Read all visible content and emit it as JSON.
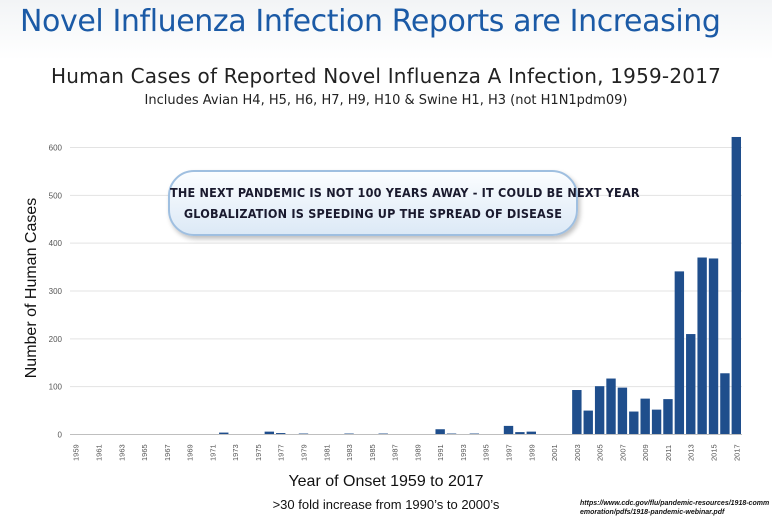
{
  "slide": {
    "title": "Novel Influenza Infection Reports are Increasing",
    "callout_line1": "The next pandemic is not 100 years away - it could be next year",
    "callout_line2": "Globalization is speeding up the spread of disease",
    "note": ">30 fold increase from 1990’s to 2000’s",
    "source": "https://www.cdc.gov/flu/pandemic-resources/1918-commemoration/pdfs/1918-pandemic-webinar.pdf",
    "colors": {
      "title": "#1b5aa6",
      "bar": "#1f4e8c"
    }
  },
  "chart_data": {
    "type": "bar",
    "title": "Human Cases of Reported Novel Influenza A Infection, 1959-2017",
    "subtitle": "Includes Avian H4, H5, H6, H7, H9, H10 & Swine H1, H3 (not H1N1pdm09)",
    "xlabel": "Year of Onset 1959 to 2017",
    "ylabel": "Number of Human Cases",
    "ylim": [
      0,
      650
    ],
    "yticks": [
      0,
      100,
      200,
      300,
      400,
      500,
      600
    ],
    "grid": true,
    "x": [
      1959,
      1960,
      1961,
      1962,
      1963,
      1964,
      1965,
      1966,
      1967,
      1968,
      1969,
      1970,
      1971,
      1972,
      1973,
      1974,
      1975,
      1976,
      1977,
      1978,
      1979,
      1980,
      1981,
      1982,
      1983,
      1984,
      1985,
      1986,
      1987,
      1988,
      1989,
      1990,
      1991,
      1992,
      1993,
      1994,
      1995,
      1996,
      1997,
      1998,
      1999,
      2000,
      2001,
      2002,
      2003,
      2004,
      2005,
      2006,
      2007,
      2008,
      2009,
      2010,
      2011,
      2012,
      2013,
      2014,
      2015,
      2016,
      2017
    ],
    "xtick_labels": [
      "1959",
      "1961",
      "1963",
      "1965",
      "1967",
      "1969",
      "1971",
      "1973",
      "1975",
      "1977",
      "1979",
      "1981",
      "1983",
      "1985",
      "1987",
      "1989",
      "1991",
      "1993",
      "1995",
      "1997",
      "1999",
      "2001",
      "2003",
      "2005",
      "2007",
      "2009",
      "2011",
      "2013",
      "2015",
      "2017"
    ],
    "values": [
      1,
      0,
      0,
      0,
      0,
      0,
      0,
      0,
      0,
      0,
      0,
      0,
      1,
      4,
      0,
      1,
      0,
      6,
      3,
      1,
      2,
      0,
      0,
      0,
      2,
      0,
      0,
      2,
      0,
      1,
      0,
      0,
      11,
      2,
      0,
      2,
      1,
      0,
      18,
      5,
      6,
      0,
      0,
      0,
      93,
      50,
      101,
      117,
      98,
      48,
      75,
      52,
      74,
      341,
      210,
      370,
      368,
      128,
      622
    ]
  }
}
